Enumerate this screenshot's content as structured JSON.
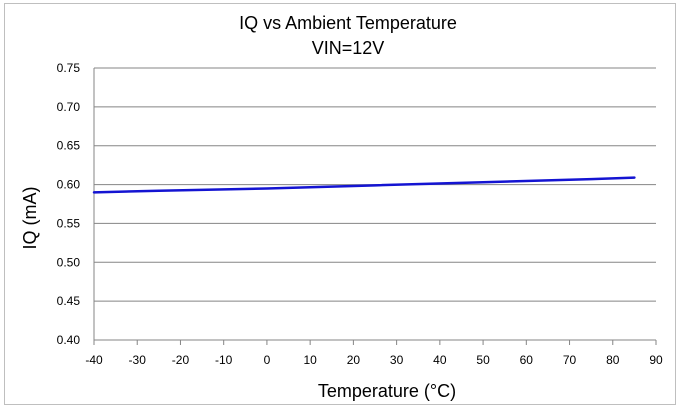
{
  "chart_data": {
    "type": "line",
    "title": "IQ vs Ambient Temperature",
    "subtitle": "VIN=12V",
    "xlabel": "Temperature (°C)",
    "ylabel": "IQ (mA)",
    "xlim": [
      -40,
      90
    ],
    "ylim": [
      0.4,
      0.75
    ],
    "x_ticks": [
      "-40",
      "-30",
      "-20",
      "-10",
      "0",
      "10",
      "20",
      "30",
      "40",
      "50",
      "60",
      "70",
      "80",
      "90"
    ],
    "y_ticks": [
      "0.40",
      "0.45",
      "0.50",
      "0.55",
      "0.60",
      "0.65",
      "0.70",
      "0.75"
    ],
    "grid": "horizontal",
    "legend": "none",
    "series": [
      {
        "color": "#1414d2",
        "x": [
          -40,
          -25,
          0,
          25,
          50,
          75,
          85
        ],
        "y": [
          0.59,
          0.592,
          0.595,
          0.599,
          0.603,
          0.607,
          0.609
        ]
      }
    ]
  }
}
